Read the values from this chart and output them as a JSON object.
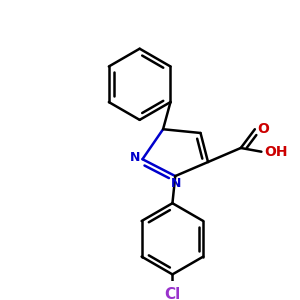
{
  "bg_color": "#ffffff",
  "bond_color": "#000000",
  "N_color": "#0000cc",
  "O_color": "#cc0000",
  "Cl_color": "#9933cc",
  "bond_width": 1.8,
  "figsize": [
    3.0,
    3.0
  ],
  "dpi": 100,
  "xlim": [
    0,
    300
  ],
  "ylim": [
    0,
    300
  ]
}
